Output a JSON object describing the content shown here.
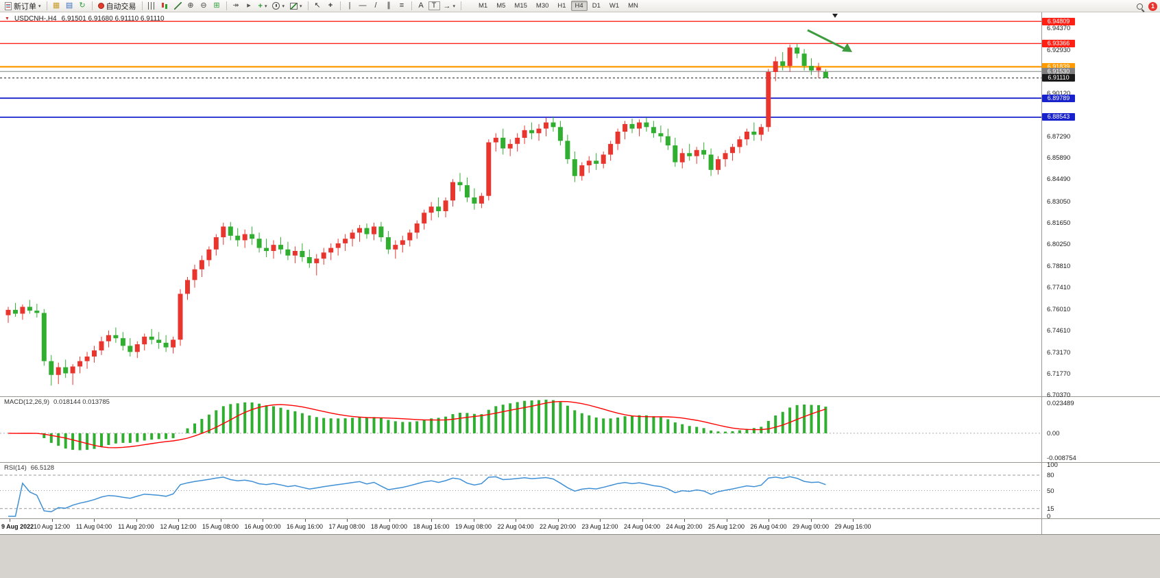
{
  "window": {
    "notification_count": "1"
  },
  "toolbar": {
    "new_order": "新订单",
    "autotrading": "自动交易",
    "timeframes": [
      "M1",
      "M5",
      "M15",
      "M30",
      "H1",
      "H4",
      "D1",
      "W1",
      "MN"
    ],
    "active_timeframe": "H4"
  },
  "icons": {
    "symbol_marker": "▼",
    "caret": "▾",
    "market_watch": "▦",
    "navigator": "▤",
    "refresh": "↻",
    "auto_scroll": "↠",
    "chart_shift": "▸",
    "zoom_in": "⊕",
    "zoom_out": "⊖",
    "tile_windows": "⊞",
    "indicators_plus": "+",
    "cursor": "↖",
    "crosshair": "+",
    "vertical_line": "|",
    "horizontal_line": "—",
    "trend_line": "/",
    "channel": "∥",
    "fibonacci": "≡",
    "text": "A",
    "label": "T",
    "arrows": "→"
  },
  "colors": {
    "bull": "#e8352e",
    "bear": "#2fae2f",
    "macd_hist": "#2fae2f",
    "macd_signal": "#ff0000",
    "rsi": "#3d8fd6",
    "level_red": "#ff2015",
    "level_orange": "#ff9a00",
    "level_blue": "#1822cc",
    "level_gray": "#808080",
    "current": "#1a1a1a",
    "arrow": "#3f9b3f"
  },
  "chart": {
    "symbol_title": "USDCNH-,H4",
    "ohlc_text": "6.91501 6.91680 6.91110 6.91110"
  },
  "chart_data": {
    "type": "candlestick",
    "symbol": "USDCNH-",
    "timeframe": "H4",
    "current_bar": {
      "open": 6.91501,
      "high": 6.9168,
      "low": 6.9111,
      "close": 6.9111
    },
    "y_range": [
      6.703,
      6.954
    ],
    "levels": [
      {
        "label": "6.94809",
        "value": 6.94809,
        "color": "level_red",
        "w": 1.4
      },
      {
        "label": "6.93366",
        "value": 6.93366,
        "color": "level_red",
        "w": 1.4
      },
      {
        "label": "6.91839",
        "value": 6.91839,
        "color": "level_orange",
        "w": 2.2
      },
      {
        "label": "6.91530",
        "value": 6.9153,
        "color": "level_gray",
        "w": 1
      },
      {
        "label": "6.91110",
        "value": 6.9111,
        "color": "current",
        "w": 1,
        "dash": "3 3"
      },
      {
        "label": "6.89789",
        "value": 6.89789,
        "color": "level_blue",
        "w": 1.8
      },
      {
        "label": "6.88543",
        "value": 6.88543,
        "color": "level_blue",
        "w": 1.8
      }
    ],
    "axis_ticks": [
      "6.94370",
      "6.92930",
      "6.90120",
      "6.87290",
      "6.85890",
      "6.84490",
      "6.83050",
      "6.81650",
      "6.80250",
      "6.78810",
      "6.77410",
      "6.76010",
      "6.74610",
      "6.73170",
      "6.71770",
      "6.70370"
    ],
    "time_labels": [
      "9 Aug 2022",
      "10 Aug 12:00",
      "11 Aug 04:00",
      "11 Aug 20:00",
      "12 Aug 12:00",
      "15 Aug 08:00",
      "16 Aug 00:00",
      "16 Aug 16:00",
      "17 Aug 08:00",
      "18 Aug 00:00",
      "18 Aug 16:00",
      "19 Aug 08:00",
      "22 Aug 04:00",
      "22 Aug 20:00",
      "23 Aug 12:00",
      "24 Aug 04:00",
      "24 Aug 20:00",
      "25 Aug 12:00",
      "26 Aug 04:00",
      "29 Aug 00:00",
      "29 Aug 16:00"
    ],
    "annotations": [
      {
        "type": "arrow",
        "direction": "down-right"
      }
    ],
    "macd": {
      "label": "MACD(12,26,9)",
      "values_text": "0.018144 0.013785",
      "fast": 12,
      "slow": 26,
      "signal": 9,
      "scale_labels": {
        "top": "0.023489",
        "zero": "0.00",
        "bottom": "-0.008754"
      }
    },
    "rsi": {
      "label": "RSI(14)",
      "value_text": "66.5128",
      "period": 14,
      "axis_labels": [
        {
          "text": "100",
          "value": 100
        },
        {
          "text": "80",
          "value": 80,
          "line": "4 3"
        },
        {
          "text": "50",
          "value": 50,
          "line": "1 3"
        },
        {
          "text": "15",
          "value": 15,
          "line": "4 3"
        },
        {
          "text": "0",
          "value": 0
        }
      ]
    },
    "candles": [
      [
        6.756,
        6.7615,
        6.751,
        6.7595
      ],
      [
        6.7595,
        6.764,
        6.755,
        6.757
      ],
      [
        6.757,
        6.763,
        6.753,
        6.7615
      ],
      [
        6.7615,
        6.766,
        6.757,
        6.759
      ],
      [
        6.759,
        6.7635,
        6.7545,
        6.7575
      ],
      [
        6.7575,
        6.76,
        6.723,
        6.726
      ],
      [
        6.726,
        6.73,
        6.71,
        6.717
      ],
      [
        6.717,
        6.725,
        6.711,
        6.722
      ],
      [
        6.722,
        6.727,
        6.715,
        6.718
      ],
      [
        6.718,
        6.724,
        6.7105,
        6.7225
      ],
      [
        6.7225,
        6.729,
        6.718,
        6.726
      ],
      [
        6.726,
        6.732,
        6.721,
        6.729
      ],
      [
        6.729,
        6.736,
        6.725,
        6.733
      ],
      [
        6.733,
        6.742,
        6.73,
        6.739
      ],
      [
        6.739,
        6.746,
        6.735,
        6.743
      ],
      [
        6.743,
        6.748,
        6.738,
        6.741
      ],
      [
        6.741,
        6.745,
        6.733,
        6.736
      ],
      [
        6.736,
        6.741,
        6.729,
        6.732
      ],
      [
        6.732,
        6.739,
        6.728,
        6.737
      ],
      [
        6.737,
        6.744,
        6.733,
        6.742
      ],
      [
        6.742,
        6.747,
        6.737,
        6.74
      ],
      [
        6.74,
        6.745,
        6.734,
        6.738
      ],
      [
        6.738,
        6.743,
        6.732,
        6.735
      ],
      [
        6.735,
        6.742,
        6.731,
        6.74
      ],
      [
        6.74,
        6.773,
        6.736,
        6.77
      ],
      [
        6.77,
        6.781,
        6.766,
        6.779
      ],
      [
        6.779,
        6.789,
        6.774,
        6.786
      ],
      [
        6.786,
        6.795,
        6.781,
        6.792
      ],
      [
        6.792,
        6.801,
        6.788,
        6.799
      ],
      [
        6.799,
        6.809,
        6.795,
        6.807
      ],
      [
        6.807,
        6.8165,
        6.802,
        6.814
      ],
      [
        6.814,
        6.817,
        6.805,
        6.808
      ],
      [
        6.808,
        6.813,
        6.801,
        6.805
      ],
      [
        6.805,
        6.812,
        6.8,
        6.809
      ],
      [
        6.809,
        6.814,
        6.802,
        6.806
      ],
      [
        6.806,
        6.81,
        6.797,
        6.8
      ],
      [
        6.8,
        6.806,
        6.794,
        6.798
      ],
      [
        6.798,
        6.805,
        6.793,
        6.802
      ],
      [
        6.802,
        6.807,
        6.796,
        6.799
      ],
      [
        6.799,
        6.804,
        6.792,
        6.795
      ],
      [
        6.795,
        6.801,
        6.79,
        6.798
      ],
      [
        6.798,
        6.803,
        6.791,
        6.794
      ],
      [
        6.794,
        6.799,
        6.787,
        6.79
      ],
      [
        6.79,
        6.796,
        6.782,
        6.793
      ],
      [
        6.793,
        6.8,
        6.789,
        6.797
      ],
      [
        6.797,
        6.803,
        6.792,
        6.8
      ],
      [
        6.8,
        6.806,
        6.795,
        6.803
      ],
      [
        6.803,
        6.809,
        6.798,
        6.806
      ],
      [
        6.806,
        6.812,
        6.801,
        6.81
      ],
      [
        6.81,
        6.815,
        6.804,
        6.813
      ],
      [
        6.813,
        6.816,
        6.806,
        6.809
      ],
      [
        6.809,
        6.8165,
        6.805,
        6.814
      ],
      [
        6.814,
        6.817,
        6.804,
        6.807
      ],
      [
        6.807,
        6.811,
        6.796,
        6.799
      ],
      [
        6.799,
        6.805,
        6.793,
        6.802
      ],
      [
        6.802,
        6.808,
        6.797,
        6.805
      ],
      [
        6.805,
        6.812,
        6.801,
        6.81
      ],
      [
        6.81,
        6.818,
        6.806,
        6.816
      ],
      [
        6.816,
        6.825,
        6.812,
        6.823
      ],
      [
        6.823,
        6.83,
        6.818,
        6.827
      ],
      [
        6.827,
        6.833,
        6.82,
        6.824
      ],
      [
        6.824,
        6.833,
        6.82,
        6.831
      ],
      [
        6.831,
        6.845,
        6.827,
        6.843
      ],
      [
        6.843,
        6.849,
        6.837,
        6.841
      ],
      [
        6.841,
        6.846,
        6.83,
        6.833
      ],
      [
        6.833,
        6.839,
        6.825,
        6.829
      ],
      [
        6.829,
        6.836,
        6.826,
        6.834
      ],
      [
        6.834,
        6.871,
        6.831,
        6.869
      ],
      [
        6.869,
        6.875,
        6.863,
        6.872
      ],
      [
        6.872,
        6.878,
        6.861,
        6.865
      ],
      [
        6.865,
        6.871,
        6.86,
        6.868
      ],
      [
        6.868,
        6.875,
        6.863,
        6.872
      ],
      [
        6.872,
        6.88,
        6.868,
        6.877
      ],
      [
        6.877,
        6.882,
        6.871,
        6.875
      ],
      [
        6.875,
        6.881,
        6.87,
        6.878
      ],
      [
        6.878,
        6.885,
        6.873,
        6.882
      ],
      [
        6.882,
        6.8855,
        6.876,
        6.879
      ],
      [
        6.879,
        6.883,
        6.867,
        6.87
      ],
      [
        6.87,
        6.874,
        6.855,
        6.858
      ],
      [
        6.858,
        6.863,
        6.843,
        6.847
      ],
      [
        6.847,
        6.856,
        6.844,
        6.854
      ],
      [
        6.854,
        6.86,
        6.849,
        6.857
      ],
      [
        6.857,
        6.862,
        6.851,
        6.855
      ],
      [
        6.855,
        6.863,
        6.852,
        6.861
      ],
      [
        6.861,
        6.87,
        6.857,
        6.868
      ],
      [
        6.868,
        6.878,
        6.864,
        6.876
      ],
      [
        6.876,
        6.883,
        6.871,
        6.881
      ],
      [
        6.881,
        6.8845,
        6.875,
        6.878
      ],
      [
        6.878,
        6.884,
        6.873,
        6.882
      ],
      [
        6.882,
        6.885,
        6.876,
        6.879
      ],
      [
        6.879,
        6.883,
        6.872,
        6.875
      ],
      [
        6.875,
        6.88,
        6.869,
        6.873
      ],
      [
        6.873,
        6.878,
        6.864,
        6.867
      ],
      [
        6.867,
        6.872,
        6.853,
        6.856
      ],
      [
        6.856,
        6.865,
        6.852,
        6.862
      ],
      [
        6.862,
        6.868,
        6.857,
        6.86
      ],
      [
        6.86,
        6.866,
        6.855,
        6.864
      ],
      [
        6.864,
        6.869,
        6.858,
        6.861
      ],
      [
        6.861,
        6.865,
        6.847,
        6.851
      ],
      [
        6.851,
        6.86,
        6.848,
        6.858
      ],
      [
        6.858,
        6.864,
        6.853,
        6.862
      ],
      [
        6.862,
        6.868,
        6.857,
        6.866
      ],
      [
        6.866,
        6.873,
        6.862,
        6.871
      ],
      [
        6.871,
        6.878,
        6.867,
        6.876
      ],
      [
        6.876,
        6.882,
        6.87,
        6.874
      ],
      [
        6.874,
        6.881,
        6.87,
        6.879
      ],
      [
        6.879,
        6.917,
        6.876,
        6.915
      ],
      [
        6.915,
        6.925,
        6.909,
        6.922
      ],
      [
        6.922,
        6.928,
        6.916,
        6.919
      ],
      [
        6.919,
        6.933,
        6.915,
        6.931
      ],
      [
        6.931,
        6.9335,
        6.924,
        6.927
      ],
      [
        6.927,
        6.93,
        6.916,
        6.919
      ],
      [
        6.919,
        6.924,
        6.913,
        6.916
      ],
      [
        6.916,
        6.921,
        6.911,
        6.918
      ],
      [
        6.91501,
        6.9168,
        6.9111,
        6.9111
      ]
    ]
  }
}
